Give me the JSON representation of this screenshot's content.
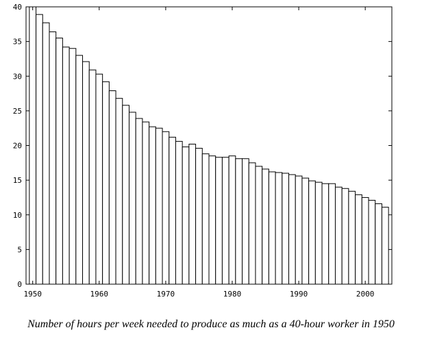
{
  "chart_data": {
    "type": "bar",
    "caption": "Number of hours per week needed to produce as much as a 40-hour worker in 1950",
    "xlabel": "",
    "ylabel": "",
    "xlim": [
      1949,
      2004
    ],
    "ylim": [
      0,
      40
    ],
    "x_ticks": [
      1950,
      1960,
      1970,
      1980,
      1990,
      2000
    ],
    "y_ticks": [
      0,
      5,
      10,
      15,
      20,
      25,
      30,
      35,
      40
    ],
    "grid": false,
    "legend": "none",
    "x": [
      1950,
      1951,
      1952,
      1953,
      1954,
      1955,
      1956,
      1957,
      1958,
      1959,
      1960,
      1961,
      1962,
      1963,
      1964,
      1965,
      1966,
      1967,
      1968,
      1969,
      1970,
      1971,
      1972,
      1973,
      1974,
      1975,
      1976,
      1977,
      1978,
      1979,
      1980,
      1981,
      1982,
      1983,
      1984,
      1985,
      1986,
      1987,
      1988,
      1989,
      1990,
      1991,
      1992,
      1993,
      1994,
      1995,
      1996,
      1997,
      1998,
      1999,
      2000,
      2001,
      2002,
      2003
    ],
    "values": [
      40.0,
      38.9,
      37.7,
      36.4,
      35.5,
      34.2,
      34.0,
      33.0,
      32.1,
      30.9,
      30.3,
      29.2,
      27.9,
      26.8,
      25.8,
      24.8,
      23.9,
      23.4,
      22.7,
      22.5,
      22.0,
      21.2,
      20.6,
      19.8,
      20.2,
      19.6,
      18.8,
      18.5,
      18.3,
      18.3,
      18.5,
      18.1,
      18.1,
      17.5,
      17.0,
      16.6,
      16.2,
      16.1,
      16.0,
      15.8,
      15.6,
      15.3,
      14.9,
      14.7,
      14.5,
      14.5,
      14.0,
      13.8,
      13.4,
      12.9,
      12.5,
      12.1,
      11.6,
      11.1
    ],
    "colors": {
      "bar_fill": "#ffffff",
      "bar_stroke": "#000000",
      "axis": "#000000"
    }
  }
}
